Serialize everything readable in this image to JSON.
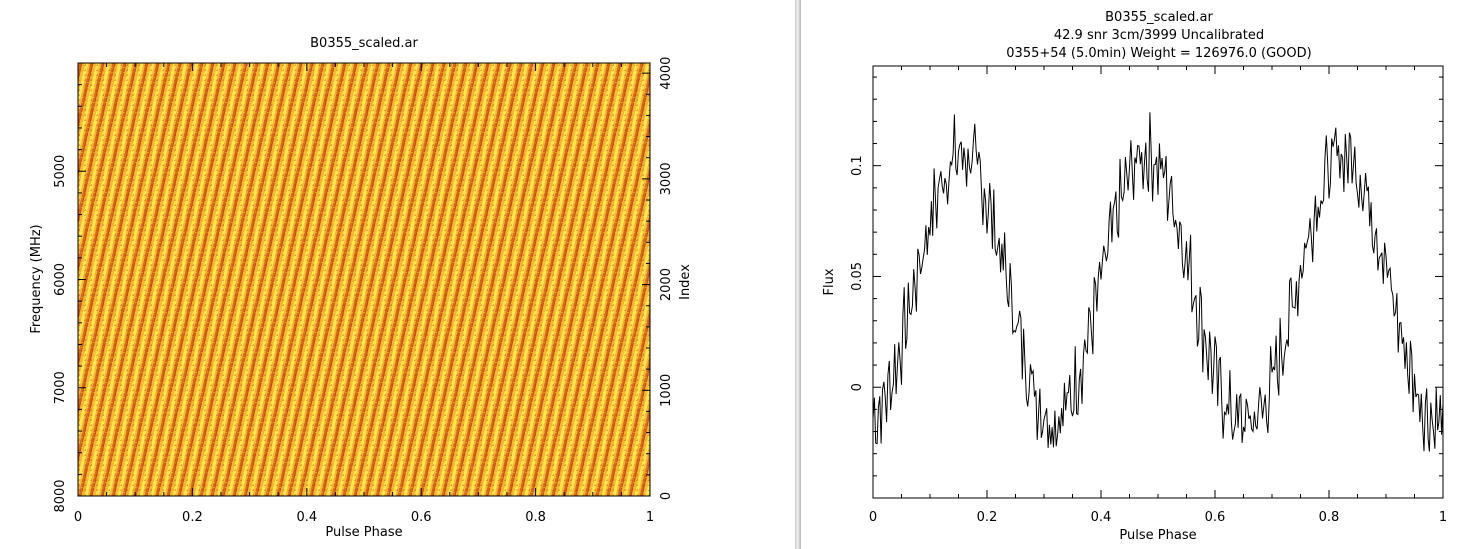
{
  "chart_data": [
    {
      "type": "heatmap",
      "title": "B0355_scaled.ar",
      "xlabel": "Pulse Phase",
      "ylabel": "Frequency (MHz)",
      "y2label": "Index",
      "xlim": [
        0,
        1
      ],
      "ylim": [
        8000,
        4000
      ],
      "y2lim": [
        0,
        4096
      ],
      "xticks": [
        "0",
        "0.2",
        "0.4",
        "0.6",
        "0.8",
        "1"
      ],
      "yticks": [
        "5000",
        "6000",
        "7000",
        "8000"
      ],
      "y2ticks": [
        "0",
        "1000",
        "2000",
        "3000",
        "4000"
      ],
      "colormap": [
        "#fff23a",
        "#f5b42a",
        "#cc4a18"
      ]
    },
    {
      "type": "line",
      "title": "B0355_scaled.ar",
      "subtitle": "42.9 snr  3cm/3999 Uncalibrated",
      "subtitle2": "0355+54  (5.0min)  Weight = 126976.0 (GOOD)",
      "xlabel": "Pulse Phase",
      "ylabel": "Flux",
      "xlim": [
        0,
        1
      ],
      "ylim": [
        -0.05,
        0.145
      ],
      "xticks": [
        "0",
        "0.2",
        "0.4",
        "0.6",
        "0.8",
        "1"
      ],
      "yticks": [
        "0",
        "0.05",
        "0.1"
      ],
      "shape": {
        "peaks": [
          0.155,
          0.48,
          0.825
        ],
        "peak_level": 0.105,
        "trough_level": -0.015,
        "noise": 0.014
      }
    }
  ]
}
